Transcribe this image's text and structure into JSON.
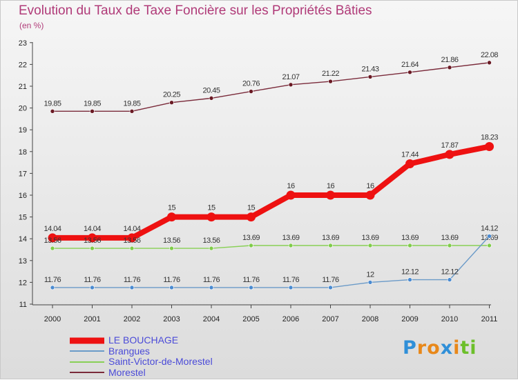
{
  "chart_data": {
    "type": "line",
    "title": "Evolution du Taux de Taxe Foncière sur les Propriétés Bâties",
    "unit_label": "(en %)",
    "categories": [
      "2000",
      "2001",
      "2002",
      "2003",
      "2004",
      "2005",
      "2006",
      "2007",
      "2008",
      "2009",
      "2010",
      "2011"
    ],
    "ylim": [
      11,
      23
    ],
    "yticks": [
      11,
      12,
      13,
      14,
      15,
      16,
      17,
      18,
      19,
      20,
      21,
      22,
      23
    ],
    "grid": false,
    "legend_position": "bottom-left",
    "series": [
      {
        "name": "Morestel",
        "color": "#7a2a3a",
        "marker_color": "#6a1a24",
        "values": [
          19.85,
          19.85,
          19.85,
          20.25,
          20.45,
          20.76,
          21.07,
          21.22,
          21.43,
          21.64,
          21.86,
          22.08
        ],
        "labels": [
          "19.85",
          "19.85",
          "19.85",
          "20.25",
          "20.45",
          "20.76",
          "21.07",
          "21.22",
          "21.43",
          "21.64",
          "21.86",
          "22.08"
        ]
      },
      {
        "name": "LE BOUCHAGE",
        "color": "#ee1111",
        "marker_color": "#ee1111",
        "values": [
          14.04,
          14.04,
          14.04,
          15,
          15,
          15,
          16,
          16,
          16,
          17.44,
          17.87,
          18.23
        ],
        "labels": [
          "14.04",
          "14.04",
          "14.04",
          "15",
          "15",
          "15",
          "16",
          "16",
          "16",
          "17.44",
          "17.87",
          "18.23"
        ]
      },
      {
        "name": "Saint-Victor-de-Morestel",
        "color": "#88d055",
        "marker_color": "#80cc4a",
        "values": [
          13.56,
          13.56,
          13.56,
          13.56,
          13.56,
          13.69,
          13.69,
          13.69,
          13.69,
          13.69,
          13.69,
          13.69
        ],
        "labels": [
          "13.56",
          "13.56",
          "13.56",
          "13.56",
          "13.56",
          "13.69",
          "13.69",
          "13.69",
          "13.69",
          "13.69",
          "13.69",
          "13.69"
        ]
      },
      {
        "name": "Brangues",
        "color": "#6a9ac8",
        "marker_color": "#4a8ad0",
        "values": [
          11.76,
          11.76,
          11.76,
          11.76,
          11.76,
          11.76,
          11.76,
          11.76,
          12,
          12.12,
          12.12,
          14.12
        ],
        "labels": [
          "11.76",
          "11.76",
          "11.76",
          "11.76",
          "11.76",
          "11.76",
          "11.76",
          "11.76",
          "12",
          "12.12",
          "12.12",
          "14.12"
        ]
      }
    ]
  },
  "legend": [
    {
      "label": "LE BOUCHAGE",
      "color": "#ee1111"
    },
    {
      "label": "Brangues",
      "color": "#6a9ac8"
    },
    {
      "label": "Saint-Victor-de-Morestel",
      "color": "#88d055"
    },
    {
      "label": "Morestel",
      "color": "#7a2a3a"
    }
  ],
  "logo": {
    "letters": [
      "P",
      "r",
      "o",
      "x",
      "i",
      "t",
      "i"
    ],
    "colors": [
      "#2f8fd8",
      "#e8881a",
      "#e8881a",
      "#2f8fd8",
      "#e8881a",
      "#6cbf2a",
      "#6cbf2a"
    ]
  }
}
